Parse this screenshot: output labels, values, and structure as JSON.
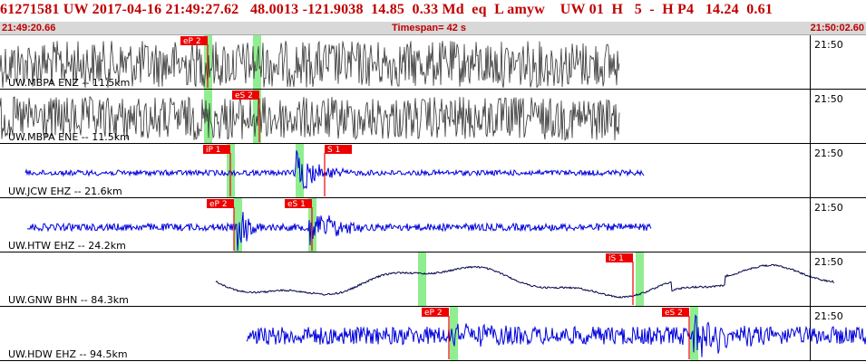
{
  "header": {
    "title": "61271581 UW 2017-04-16 21:49:27.62   48.0013 -121.9038  14.85  0.33 Md  eq  L amyw    UW 01  H   5  -  H P4   14.24  0.61",
    "start_time": "21:49:20.66",
    "timespan": "Timespan=  42 s",
    "end_time": "21:50:02.60"
  },
  "colors": {
    "accent_text": "#c00000",
    "trace_dark": "#333333",
    "trace_blue": "#0000dd",
    "trace_navy": "#00004a",
    "pick_flag": "#ee0000",
    "pick_window": "#90ee90",
    "panel_border": "#000000"
  },
  "tick_label": "21:50",
  "panels": [
    {
      "label": "UW.MBPA ENZ -- 11.5km",
      "color": "dark",
      "style": "noise",
      "amp": 26,
      "span": [
        0,
        683
      ],
      "windows": [
        229,
        283
      ],
      "picks": [
        {
          "label": "eP 2",
          "x": 229,
          "flag_side": "left"
        }
      ],
      "events": []
    },
    {
      "label": "UW.MBPA ENE -- 11.5km",
      "color": "dark",
      "style": "noise",
      "amp": 24,
      "span": [
        0,
        683
      ],
      "windows": [
        229,
        283
      ],
      "picks": [
        {
          "label": "eS 2",
          "x": 286,
          "flag_side": "left"
        }
      ],
      "events": []
    },
    {
      "label": "UW.JCW EHZ -- 21.6km",
      "color": "blue",
      "style": "burst",
      "amp": 3,
      "span": [
        28,
        710
      ],
      "windows": [
        254,
        330
      ],
      "picks": [
        {
          "label": "iP 1",
          "x": 254,
          "flag_side": "left"
        },
        {
          "label": "S 1",
          "x": 358,
          "flag_side": "right"
        }
      ],
      "events": [
        {
          "x": 325,
          "amp": 28,
          "len": 55
        }
      ]
    },
    {
      "label": "UW.HTW EHZ -- 24.2km",
      "color": "blue",
      "style": "burst",
      "amp": 4,
      "span": [
        30,
        718
      ],
      "windows": [
        262,
        344
      ],
      "picks": [
        {
          "label": "eP 2",
          "x": 258,
          "flag_side": "left"
        },
        {
          "label": "eS 1",
          "x": 344,
          "flag_side": "left"
        }
      ],
      "events": [
        {
          "x": 262,
          "amp": 28,
          "len": 30
        },
        {
          "x": 340,
          "amp": 28,
          "len": 60
        }
      ]
    },
    {
      "label": "UW.GNW BHN -- 84.3km",
      "color": "navy",
      "style": "wave",
      "amp": 14,
      "span": [
        238,
        920
      ],
      "windows": [
        465,
        705
      ],
      "picks": [
        {
          "label": "iS 1",
          "x": 698,
          "flag_side": "left"
        }
      ],
      "events": []
    },
    {
      "label": "UW.HDW EHZ -- 94.5km",
      "color": "blue",
      "style": "burst",
      "amp": 10,
      "span": [
        272,
        955
      ],
      "windows": [
        500,
        765
      ],
      "picks": [
        {
          "label": "eP 2",
          "x": 495,
          "flag_side": "left"
        },
        {
          "label": "eS 2",
          "x": 760,
          "flag_side": "left"
        }
      ],
      "events": [
        {
          "x": 500,
          "amp": 16,
          "len": 60
        },
        {
          "x": 765,
          "amp": 28,
          "len": 70
        }
      ]
    }
  ]
}
